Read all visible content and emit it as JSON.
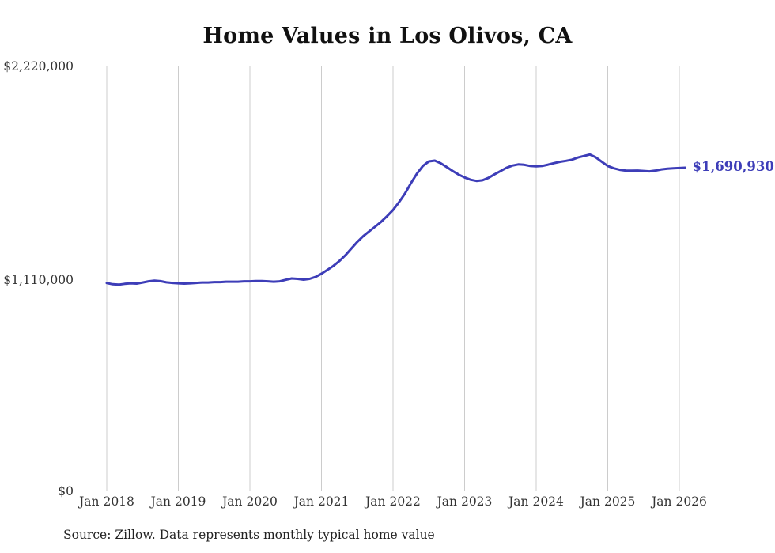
{
  "title": "Home Values in Los Olivos, CA",
  "source_note": "Source: Zillow. Data represents monthly typical home value",
  "end_label": "$1,690,930",
  "colors": {
    "line": "#3d3db8",
    "grid": "#cccccc",
    "title_text": "#111111",
    "axis_text": "#333333"
  },
  "chart_data": {
    "type": "line",
    "title": "Home Values in Los Olivos, CA",
    "xlabel": "",
    "ylabel": "",
    "ylim": [
      0,
      2220000
    ],
    "grid": "vertical-only",
    "legend": "none",
    "y_tick_labels": [
      "$0",
      "$1,110,000",
      "$2,220,000"
    ],
    "y_tick_values": [
      0,
      1110000,
      2220000
    ],
    "x_tick_labels": [
      "Jan 2018",
      "Jan 2019",
      "Jan 2020",
      "Jan 2021",
      "Jan 2022",
      "Jan 2023",
      "Jan 2024",
      "Jan 2025",
      "Jan 2026"
    ],
    "x_start": "2018-01",
    "x_interval": "month",
    "n_points": 98,
    "final_value": 1690930,
    "final_value_label": "$1,690,930",
    "series": [
      {
        "name": "Typical home value",
        "values": [
          1088000,
          1082000,
          1080000,
          1084000,
          1087000,
          1085000,
          1091000,
          1097000,
          1101000,
          1098000,
          1092000,
          1089000,
          1087000,
          1085000,
          1087000,
          1089000,
          1091000,
          1091000,
          1093000,
          1093000,
          1095000,
          1095000,
          1095000,
          1097000,
          1097000,
          1099000,
          1099000,
          1097000,
          1095000,
          1097000,
          1105000,
          1112000,
          1110000,
          1106000,
          1110000,
          1120000,
          1137000,
          1157000,
          1178000,
          1203000,
          1233000,
          1268000,
          1303000,
          1333000,
          1358000,
          1383000,
          1408000,
          1438000,
          1470000,
          1510000,
          1556000,
          1610000,
          1660000,
          1700000,
          1724000,
          1728000,
          1714000,
          1694000,
          1674000,
          1655000,
          1640000,
          1628000,
          1622000,
          1625000,
          1638000,
          1656000,
          1673000,
          1690000,
          1702000,
          1708000,
          1706000,
          1700000,
          1698000,
          1700000,
          1707000,
          1715000,
          1722000,
          1727000,
          1733000,
          1744000,
          1752000,
          1760000,
          1745000,
          1722000,
          1700000,
          1688000,
          1680000,
          1676000,
          1675000,
          1676000,
          1674000,
          1672000,
          1676000,
          1682000,
          1686000,
          1688000,
          1689000,
          1690930
        ]
      }
    ]
  }
}
